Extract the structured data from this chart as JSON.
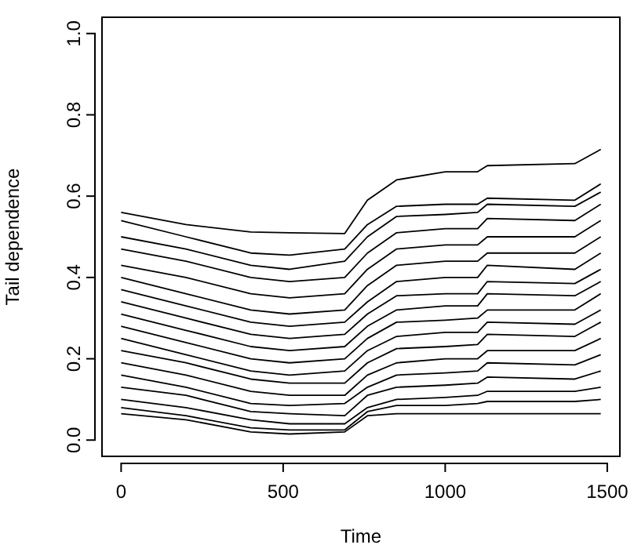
{
  "chart_data": {
    "type": "line",
    "xlabel": "Time",
    "ylabel": "Tail dependence",
    "x": [
      0,
      200,
      400,
      520,
      690,
      760,
      850,
      1000,
      1100,
      1130,
      1400,
      1480
    ],
    "xlim": [
      -59,
      1539
    ],
    "ylim": [
      -0.04,
      1.04
    ],
    "xticks": [
      0,
      500,
      1000,
      1500
    ],
    "yticks": [
      {
        "value": 0,
        "label": "0.0"
      },
      0.2,
      0.4,
      0.6,
      0.8,
      {
        "value": 1,
        "label": "1.0"
      }
    ],
    "grid": false,
    "marker": "none",
    "line_style": "solid",
    "series": [
      {
        "color": "#000000",
        "values": [
          0.56,
          0.53,
          0.512,
          0.51,
          0.508,
          0.59,
          0.64,
          0.66,
          0.66,
          0.675,
          0.68,
          0.715
        ]
      },
      {
        "color": "#000000",
        "values": [
          0.54,
          0.5,
          0.46,
          0.455,
          0.47,
          0.53,
          0.575,
          0.58,
          0.58,
          0.595,
          0.59,
          0.63
        ]
      },
      {
        "color": "#000000",
        "values": [
          0.5,
          0.47,
          0.43,
          0.42,
          0.44,
          0.5,
          0.55,
          0.555,
          0.56,
          0.58,
          0.575,
          0.61
        ]
      },
      {
        "color": "#000000",
        "values": [
          0.47,
          0.44,
          0.4,
          0.39,
          0.4,
          0.46,
          0.51,
          0.52,
          0.52,
          0.545,
          0.54,
          0.58
        ]
      },
      {
        "color": "#000000",
        "values": [
          0.43,
          0.4,
          0.36,
          0.35,
          0.36,
          0.42,
          0.47,
          0.48,
          0.48,
          0.5,
          0.5,
          0.54
        ]
      },
      {
        "color": "#000000",
        "values": [
          0.4,
          0.36,
          0.32,
          0.31,
          0.32,
          0.38,
          0.43,
          0.44,
          0.44,
          0.46,
          0.46,
          0.5
        ]
      },
      {
        "color": "#000000",
        "values": [
          0.37,
          0.33,
          0.29,
          0.28,
          0.29,
          0.34,
          0.39,
          0.4,
          0.4,
          0.43,
          0.42,
          0.46
        ]
      },
      {
        "color": "#000000",
        "values": [
          0.34,
          0.3,
          0.26,
          0.25,
          0.26,
          0.31,
          0.355,
          0.36,
          0.36,
          0.39,
          0.385,
          0.42
        ]
      },
      {
        "color": "#000000",
        "values": [
          0.31,
          0.27,
          0.23,
          0.22,
          0.23,
          0.28,
          0.32,
          0.33,
          0.33,
          0.36,
          0.355,
          0.39
        ]
      },
      {
        "color": "#000000",
        "values": [
          0.28,
          0.24,
          0.2,
          0.19,
          0.2,
          0.25,
          0.29,
          0.295,
          0.3,
          0.32,
          0.32,
          0.36
        ]
      },
      {
        "color": "#000000",
        "values": [
          0.25,
          0.21,
          0.17,
          0.16,
          0.17,
          0.22,
          0.255,
          0.265,
          0.265,
          0.29,
          0.285,
          0.32
        ]
      },
      {
        "color": "#000000",
        "values": [
          0.22,
          0.19,
          0.15,
          0.14,
          0.14,
          0.19,
          0.225,
          0.23,
          0.235,
          0.26,
          0.255,
          0.29
        ]
      },
      {
        "color": "#000000",
        "values": [
          0.19,
          0.16,
          0.12,
          0.11,
          0.11,
          0.16,
          0.19,
          0.2,
          0.2,
          0.22,
          0.22,
          0.25
        ]
      },
      {
        "color": "#000000",
        "values": [
          0.16,
          0.13,
          0.09,
          0.085,
          0.09,
          0.13,
          0.16,
          0.165,
          0.17,
          0.19,
          0.185,
          0.21
        ]
      },
      {
        "color": "#000000",
        "values": [
          0.13,
          0.11,
          0.07,
          0.065,
          0.06,
          0.11,
          0.13,
          0.135,
          0.14,
          0.155,
          0.15,
          0.17
        ]
      },
      {
        "color": "#000000",
        "values": [
          0.1,
          0.08,
          0.05,
          0.04,
          0.04,
          0.08,
          0.1,
          0.105,
          0.11,
          0.12,
          0.12,
          0.13
        ]
      },
      {
        "color": "#000000",
        "values": [
          0.08,
          0.06,
          0.03,
          0.025,
          0.025,
          0.07,
          0.085,
          0.085,
          0.09,
          0.095,
          0.095,
          0.1
        ]
      },
      {
        "color": "#000000",
        "values": [
          0.065,
          0.05,
          0.02,
          0.015,
          0.02,
          0.06,
          0.065,
          0.065,
          0.065,
          0.065,
          0.065,
          0.065
        ]
      }
    ]
  }
}
